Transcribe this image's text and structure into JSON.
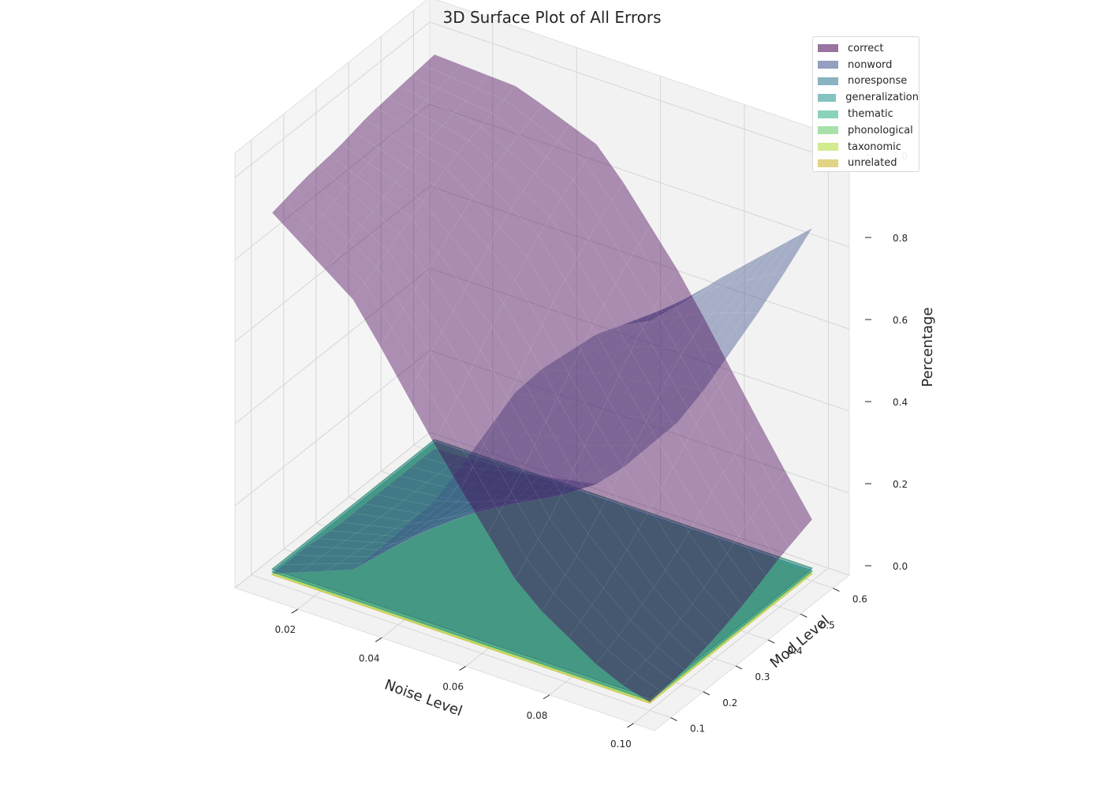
{
  "chart_data": {
    "type": "surface3d",
    "title": "3D Surface Plot of All Errors",
    "xlabel": "Noise Level",
    "ylabel": "Mod Level",
    "zlabel": "Percentage",
    "xlim": [
      0.005,
      0.105
    ],
    "ylim": [
      0.05,
      0.65
    ],
    "zlim": [
      0.0,
      1.0
    ],
    "x_ticks": [
      "0.02",
      "0.04",
      "0.06",
      "0.08",
      "0.10"
    ],
    "y_ticks": [
      "0.1",
      "0.2",
      "0.3",
      "0.4",
      "0.5",
      "0.6"
    ],
    "z_ticks": [
      "0.0",
      "0.2",
      "0.4",
      "0.6",
      "0.8",
      "1.0"
    ],
    "legend_position": "top-right",
    "series": [
      {
        "name": "correct",
        "color": "#440154",
        "grid": {
          "x": [
            0.01,
            0.03,
            0.05,
            0.07,
            0.09,
            0.1
          ],
          "y": [
            0.1,
            0.2,
            0.3,
            0.4,
            0.5,
            0.6
          ],
          "z": [
            [
              0.9,
              0.75,
              0.45,
              0.18,
              0.05,
              0.02
            ],
            [
              0.92,
              0.8,
              0.55,
              0.25,
              0.08,
              0.03
            ],
            [
              0.93,
              0.85,
              0.65,
              0.35,
              0.12,
              0.05
            ],
            [
              0.95,
              0.9,
              0.75,
              0.45,
              0.18,
              0.08
            ],
            [
              0.96,
              0.93,
              0.82,
              0.55,
              0.25,
              0.12
            ],
            [
              0.97,
              0.96,
              0.88,
              0.62,
              0.3,
              0.15
            ]
          ]
        }
      },
      {
        "name": "nonword",
        "color": "#3b528b",
        "grid": {
          "x": [
            0.01,
            0.03,
            0.05,
            0.07,
            0.09,
            0.1
          ],
          "y": [
            0.1,
            0.2,
            0.3,
            0.4,
            0.5,
            0.6
          ],
          "z": [
            [
              0.02,
              0.1,
              0.35,
              0.7,
              0.9,
              0.95
            ],
            [
              0.02,
              0.08,
              0.28,
              0.62,
              0.86,
              0.93
            ],
            [
              0.01,
              0.06,
              0.22,
              0.55,
              0.82,
              0.92
            ],
            [
              0.01,
              0.04,
              0.15,
              0.45,
              0.78,
              0.9
            ],
            [
              0.01,
              0.03,
              0.1,
              0.38,
              0.72,
              0.88
            ],
            [
              0.01,
              0.02,
              0.06,
              0.3,
              0.66,
              0.86
            ]
          ]
        }
      },
      {
        "name": "noresponse",
        "color": "#2c728e",
        "value_range": [
          0.0,
          0.06
        ]
      },
      {
        "name": "generalization",
        "color": "#21918c",
        "value_range": [
          0.0,
          0.05
        ]
      },
      {
        "name": "thematic",
        "color": "#28ae80",
        "value_range": [
          0.0,
          0.05
        ]
      },
      {
        "name": "phonological",
        "color": "#5ec962",
        "value_range": [
          0.0,
          0.08
        ]
      },
      {
        "name": "taxonomic",
        "color": "#addc30",
        "value_range": [
          0.0,
          0.05
        ]
      },
      {
        "name": "unrelated",
        "color": "#c9b020",
        "value_range": [
          0.0,
          0.05
        ]
      }
    ]
  }
}
